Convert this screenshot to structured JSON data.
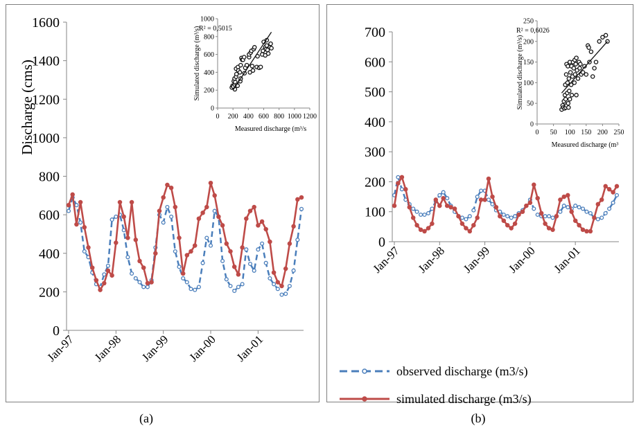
{
  "colors": {
    "observed": "#4a7ebb",
    "simulated": "#be4b48",
    "frame": "#7f7f7f",
    "text": "#1a1a1a"
  },
  "legend": {
    "observed": "observed discharge (m3/s)",
    "simulated": "simulated discharge (m3/s)"
  },
  "chart_data": [
    {
      "panel": "(a)",
      "type": "line",
      "ylabel": "Discharge (cms)",
      "xlabel": "",
      "ylim": [
        0,
        1600
      ],
      "yticks": [
        "0",
        "200",
        "400",
        "600",
        "800",
        "1000",
        "1200",
        "1400",
        "1600"
      ],
      "xtick_labels": [
        "Jan-97",
        "Jan-98",
        "Jan-99",
        "Jan-00",
        "Jan-01"
      ],
      "xtick_months": [
        0,
        12,
        24,
        36,
        48
      ],
      "x_months": 60,
      "grid": false,
      "series": [
        {
          "name": "observed discharge (m3/s)",
          "values": [
            620,
            690,
            650,
            560,
            410,
            380,
            300,
            240,
            225,
            290,
            335,
            575,
            590,
            600,
            520,
            380,
            295,
            270,
            250,
            225,
            225,
            260,
            430,
            600,
            560,
            640,
            590,
            410,
            330,
            270,
            250,
            215,
            210,
            225,
            350,
            480,
            440,
            620,
            590,
            360,
            265,
            230,
            205,
            225,
            240,
            420,
            345,
            310,
            420,
            450,
            350,
            270,
            240,
            215,
            185,
            190,
            230,
            310,
            470,
            630
          ]
        },
        {
          "name": "simulated discharge (m3/s)",
          "values": [
            650,
            705,
            550,
            665,
            535,
            430,
            325,
            260,
            210,
            245,
            310,
            285,
            455,
            665,
            590,
            480,
            665,
            470,
            360,
            325,
            245,
            250,
            400,
            620,
            690,
            755,
            740,
            640,
            480,
            295,
            390,
            410,
            440,
            580,
            610,
            640,
            765,
            700,
            590,
            545,
            450,
            410,
            330,
            290,
            430,
            580,
            620,
            640,
            545,
            565,
            525,
            460,
            300,
            250,
            230,
            320,
            450,
            540,
            680,
            690
          ]
        }
      ],
      "inset": {
        "type": "scatter",
        "xlabel": "Measured discharge (m³/s",
        "ylabel": "Simulated discharge (m³/s)",
        "r2_label": "R² = 0,5015",
        "xlim": [
          0,
          1200
        ],
        "ylim": [
          0,
          1000
        ],
        "xticks": [
          "0",
          "200",
          "400",
          "600",
          "800",
          "1000",
          "1200"
        ],
        "yticks": [
          "0",
          "200",
          "400",
          "600",
          "800",
          "1000"
        ],
        "trendline": {
          "x": [
            200,
            700
          ],
          "y": [
            200,
            850
          ]
        },
        "points": [
          [
            185,
            230
          ],
          [
            195,
            250
          ],
          [
            205,
            240
          ],
          [
            210,
            300
          ],
          [
            220,
            330
          ],
          [
            225,
            210
          ],
          [
            225,
            260
          ],
          [
            230,
            290
          ],
          [
            240,
            350
          ],
          [
            240,
            440
          ],
          [
            245,
            380
          ],
          [
            250,
            260
          ],
          [
            260,
            250
          ],
          [
            265,
            460
          ],
          [
            270,
            420
          ],
          [
            290,
            400
          ],
          [
            295,
            300
          ],
          [
            300,
            330
          ],
          [
            300,
            480
          ],
          [
            310,
            560
          ],
          [
            320,
            540
          ],
          [
            330,
            540
          ],
          [
            345,
            570
          ],
          [
            350,
            390
          ],
          [
            360,
            450
          ],
          [
            380,
            480
          ],
          [
            410,
            570
          ],
          [
            410,
            600
          ],
          [
            420,
            400
          ],
          [
            430,
            620
          ],
          [
            440,
            640
          ],
          [
            450,
            470
          ],
          [
            460,
            420
          ],
          [
            470,
            660
          ],
          [
            480,
            680
          ],
          [
            510,
            460
          ],
          [
            520,
            580
          ],
          [
            540,
            450
          ],
          [
            560,
            460
          ],
          [
            580,
            600
          ],
          [
            590,
            640
          ],
          [
            620,
            590
          ],
          [
            620,
            680
          ],
          [
            630,
            660
          ],
          [
            640,
            700
          ],
          [
            650,
            650
          ],
          [
            660,
            610
          ],
          [
            680,
            680
          ],
          [
            690,
            720
          ],
          [
            700,
            670
          ],
          [
            640,
            760
          ],
          [
            600,
            740
          ]
        ]
      }
    },
    {
      "panel": "(b)",
      "type": "line",
      "ylabel": "",
      "xlabel": "",
      "ylim": [
        0,
        700
      ],
      "yticks": [
        "0",
        "100",
        "200",
        "300",
        "400",
        "500",
        "600",
        "700"
      ],
      "xtick_labels": [
        "Jan-97",
        "Jan-98",
        "Jan-99",
        "Jan-00",
        "Jan-01"
      ],
      "xtick_months": [
        0,
        12,
        24,
        36,
        48
      ],
      "x_months": 60,
      "grid": false,
      "series": [
        {
          "name": "observed discharge (m3/s)",
          "values": [
            155,
            215,
            175,
            140,
            125,
            110,
            100,
            90,
            90,
            95,
            110,
            135,
            155,
            165,
            145,
            120,
            100,
            85,
            80,
            75,
            85,
            105,
            150,
            170,
            170,
            140,
            125,
            105,
            100,
            90,
            85,
            80,
            85,
            95,
            105,
            120,
            140,
            110,
            90,
            85,
            85,
            85,
            80,
            85,
            100,
            120,
            115,
            110,
            120,
            115,
            110,
            100,
            95,
            80,
            75,
            80,
            95,
            110,
            130,
            155
          ]
        },
        {
          "name": "simulated discharge (m3/s)",
          "values": [
            120,
            195,
            215,
            175,
            115,
            80,
            55,
            40,
            35,
            45,
            60,
            140,
            120,
            145,
            120,
            115,
            110,
            85,
            60,
            45,
            35,
            55,
            80,
            140,
            140,
            210,
            150,
            115,
            85,
            70,
            55,
            45,
            60,
            90,
            100,
            120,
            130,
            190,
            145,
            95,
            60,
            45,
            40,
            85,
            140,
            150,
            155,
            100,
            70,
            55,
            40,
            35,
            35,
            80,
            125,
            140,
            185,
            175,
            165,
            185
          ]
        }
      ],
      "inset": {
        "type": "scatter",
        "xlabel": "Measured discharge (m³",
        "ylabel": "Simulated discharge (m³/s)",
        "r2_label": "R² = 0,6026",
        "xlim": [
          0,
          250
        ],
        "ylim": [
          0,
          250
        ],
        "xticks": [
          "0",
          "50",
          "100",
          "150",
          "200",
          "250"
        ],
        "yticks": [
          "0",
          "50",
          "100",
          "150",
          "200",
          "250"
        ],
        "trendline": {
          "x": [
            75,
            215
          ],
          "y": [
            75,
            200
          ]
        },
        "points": [
          [
            75,
            35
          ],
          [
            78,
            45
          ],
          [
            80,
            40
          ],
          [
            82,
            55
          ],
          [
            84,
            38
          ],
          [
            85,
            70
          ],
          [
            86,
            95
          ],
          [
            87,
            60
          ],
          [
            88,
            40
          ],
          [
            89,
            120
          ],
          [
            90,
            145
          ],
          [
            90,
            45
          ],
          [
            92,
            75
          ],
          [
            93,
            100
          ],
          [
            94,
            140
          ],
          [
            95,
            50
          ],
          [
            96,
            40
          ],
          [
            97,
            110
          ],
          [
            98,
            80
          ],
          [
            100,
            150
          ],
          [
            100,
            60
          ],
          [
            102,
            125
          ],
          [
            104,
            95
          ],
          [
            105,
            140
          ],
          [
            106,
            70
          ],
          [
            108,
            115
          ],
          [
            110,
            150
          ],
          [
            112,
            135
          ],
          [
            114,
            100
          ],
          [
            115,
            155
          ],
          [
            116,
            120
          ],
          [
            118,
            145
          ],
          [
            120,
            160
          ],
          [
            122,
            130
          ],
          [
            125,
            110
          ],
          [
            128,
            150
          ],
          [
            130,
            135
          ],
          [
            132,
            145
          ],
          [
            135,
            120
          ],
          [
            140,
            125
          ],
          [
            145,
            140
          ],
          [
            150,
            120
          ],
          [
            155,
            190
          ],
          [
            158,
            185
          ],
          [
            160,
            150
          ],
          [
            165,
            175
          ],
          [
            170,
            115
          ],
          [
            175,
            135
          ],
          [
            180,
            150
          ],
          [
            190,
            200
          ],
          [
            200,
            210
          ],
          [
            210,
            215
          ],
          [
            215,
            200
          ],
          [
            120,
            70
          ]
        ]
      }
    }
  ],
  "captions": [
    "(a)",
    "(b)"
  ]
}
